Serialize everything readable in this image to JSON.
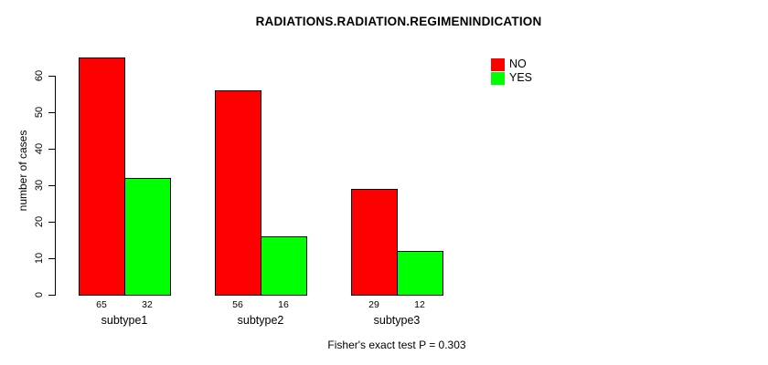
{
  "chart_data": {
    "type": "bar",
    "title": "RADIATIONS.RADIATION.REGIMENINDICATION",
    "ylabel": "number of cases",
    "xlabel": "",
    "categories": [
      "subtype1",
      "subtype2",
      "subtype3"
    ],
    "series": [
      {
        "name": "NO",
        "color": "#FF0000",
        "values": [
          65,
          56,
          29
        ]
      },
      {
        "name": "YES",
        "color": "#00FF00",
        "values": [
          32,
          16,
          12
        ]
      }
    ],
    "value_labels": [
      [
        "65",
        "56",
        "29"
      ],
      [
        "32",
        "16",
        "12"
      ]
    ],
    "yticks": [
      "0",
      "10",
      "20",
      "30",
      "40",
      "50",
      "60"
    ],
    "ylim": [
      0,
      65
    ],
    "grid": false,
    "legend_position": "top-right",
    "annotation": "Fisher's exact test P = 0.303",
    "colors": {
      "background": "#FFFFFF",
      "axis": "#000000",
      "text": "#000000",
      "bar_border": "#000000"
    }
  }
}
